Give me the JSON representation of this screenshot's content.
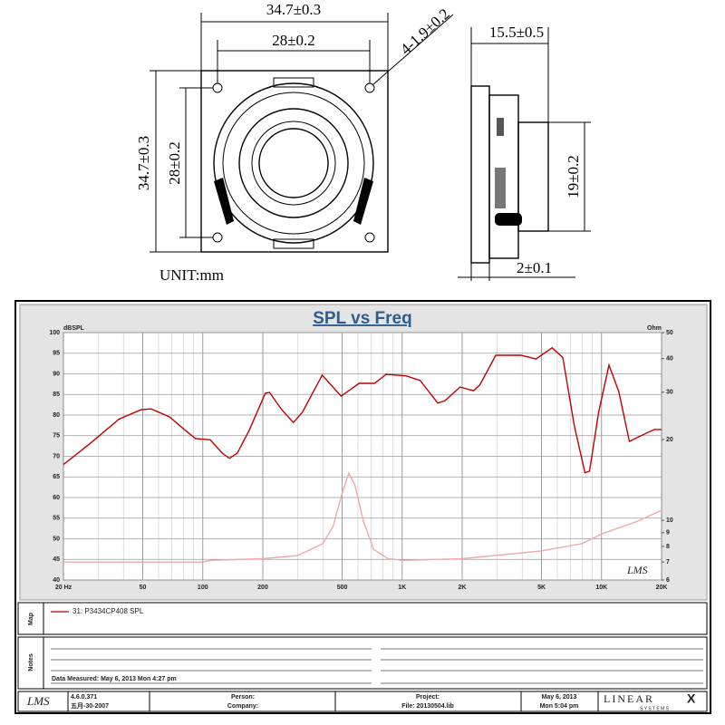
{
  "drawing": {
    "front_width": "34.7±0.3",
    "front_hole_spacing": "28±0.2",
    "holes": "4-1.9±0.2",
    "front_height": "34.7±0.3",
    "front_hole_spacing_vertical": "28±0.2",
    "unit": "UNIT:mm",
    "side_depth": "15.5±0.5",
    "magnet_diameter": "19±0.2",
    "flange": "2±0.1"
  },
  "chart_data": {
    "type": "line",
    "title": "SPL vs Freq",
    "y_label": "dBSPL",
    "y2_label": "Ohm",
    "logo": "LMS",
    "xlim": [
      20,
      20000
    ],
    "xlog": true,
    "xticks": [
      {
        "value": 20,
        "label": "20 Hz"
      },
      50,
      100,
      200,
      500,
      {
        "value": 1000,
        "label": "1K"
      },
      {
        "value": 2000,
        "label": "2K"
      },
      {
        "value": 5000,
        "label": "5K"
      },
      {
        "value": 10000,
        "label": "10K"
      },
      {
        "value": 20000,
        "label": "20K"
      }
    ],
    "ylim": [
      40,
      100
    ],
    "yticks": [
      40,
      45,
      50,
      55,
      60,
      65,
      70,
      75,
      80,
      85,
      90,
      95,
      100
    ],
    "y2lim": [
      6,
      50
    ],
    "y2log": true,
    "y2ticks": [
      6,
      7,
      8,
      9,
      10,
      20,
      30,
      40,
      50
    ],
    "grid": true,
    "series": [
      {
        "name": "31: P3434CP408 SPL",
        "color": "#c00000",
        "x": [
          20,
          27,
          38,
          49,
          55,
          68,
          83,
          92,
          109,
          125,
          136,
          149,
          171,
          206,
          216,
          249,
          285,
          316,
          397,
          494,
          608,
          727,
          832,
          1050,
          1230,
          1510,
          1640,
          1950,
          2280,
          2450,
          2950,
          3440,
          3940,
          4690,
          5650,
          6390,
          7300,
          8260,
          8700,
          9670,
          10900,
          12200,
          13800,
          15600,
          18400,
          20000
        ],
        "values": [
          68,
          73,
          79,
          81.3,
          81.5,
          79.6,
          76,
          74.3,
          74,
          70.8,
          69.5,
          70.8,
          76.3,
          85.3,
          85.5,
          81.3,
          78.2,
          80.7,
          89.7,
          84.6,
          87.7,
          87.7,
          89.9,
          89.5,
          88.4,
          82.9,
          83.5,
          86.8,
          85.9,
          87.3,
          94.5,
          94.5,
          94.5,
          93.6,
          96.3,
          94,
          77.4,
          66,
          66.4,
          80.7,
          92.1,
          85.7,
          73.6,
          74.9,
          76.5,
          76.5
        ]
      },
      {
        "color": "#f0a8a8",
        "axis": "y2",
        "x": [
          20,
          100,
          110,
          200,
          300,
          400,
          450,
          500,
          540,
          580,
          640,
          720,
          850,
          1000,
          2000,
          5000,
          8000,
          10000,
          15000,
          20000
        ],
        "values": [
          7.0,
          7.0,
          7.1,
          7.2,
          7.4,
          8.2,
          9.5,
          12.6,
          15.0,
          13.5,
          9.9,
          7.8,
          7.2,
          7.1,
          7.2,
          7.7,
          8.2,
          8.9,
          9.9,
          10.9
        ]
      }
    ]
  },
  "panels": {
    "map_label": "Map",
    "notes_label": "Notes",
    "data_measured": "Data Measured: May 6, 2013  Mon  4:27 pm"
  },
  "footer": {
    "logo": "LMS",
    "version": "4.6.0.371",
    "build_date": "五月-30-2007",
    "person": "Person:",
    "company": "Company:",
    "project": "Project:",
    "file": "File: 20130504.lib",
    "date": "May 6, 2013",
    "time": "Mon  5:04 pm",
    "brand": "LINEAR",
    "brand_x": "X",
    "brand_sub": "S Y S T E M S"
  }
}
